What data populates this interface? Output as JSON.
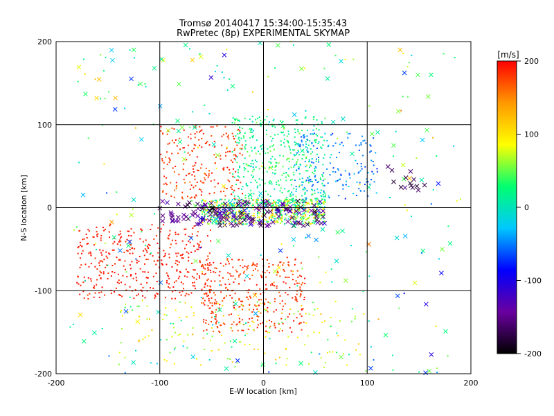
{
  "chart_data": {
    "type": "scatter",
    "title": "Tromsø 20140417 15:34:00-15:35:43",
    "subtitle": "RwPretec (8p) EXPERIMENTAL SKYMAP",
    "xlabel": "E-W location [km]",
    "ylabel": "N-S location [km]",
    "xlim": [
      -200,
      200
    ],
    "ylim": [
      -200,
      200
    ],
    "xticks": [
      -200,
      -100,
      0,
      100,
      200
    ],
    "yticks": [
      -200,
      -100,
      0,
      100,
      200
    ],
    "grid": true,
    "colorbar": {
      "label": "[m/s]",
      "range": [
        -200,
        200
      ],
      "ticks": [
        200,
        100,
        0,
        -100,
        -200
      ],
      "colormap": [
        "#000000",
        "#6a00a0",
        "#0000ff",
        "#00c8ff",
        "#00ff70",
        "#ffff00",
        "#ff9900",
        "#ff0000"
      ]
    },
    "point_groups": [
      {
        "marker": "dot",
        "xrange": [
          -60,
          60
        ],
        "yrange": [
          -20,
          10
        ],
        "velocity_mean": 60,
        "velocity_spread": 180,
        "count": 700
      },
      {
        "marker": "cross",
        "xrange": [
          -100,
          60
        ],
        "yrange": [
          -22,
          8
        ],
        "velocity_mean": -150,
        "velocity_spread": 90,
        "count": 160
      },
      {
        "marker": "dot",
        "xrange": [
          -30,
          60
        ],
        "yrange": [
          0,
          110
        ],
        "velocity_mean": 20,
        "velocity_spread": 70,
        "count": 450
      },
      {
        "marker": "dot",
        "xrange": [
          -100,
          -20
        ],
        "yrange": [
          10,
          100
        ],
        "velocity_mean": 180,
        "velocity_spread": 40,
        "count": 220
      },
      {
        "marker": "dot",
        "xrange": [
          -180,
          -50
        ],
        "yrange": [
          -110,
          -20
        ],
        "velocity_mean": 190,
        "velocity_spread": 25,
        "count": 400
      },
      {
        "marker": "dot",
        "xrange": [
          -60,
          40
        ],
        "yrange": [
          -150,
          -60
        ],
        "velocity_mean": 180,
        "velocity_spread": 45,
        "count": 350
      },
      {
        "marker": "dot",
        "xrange": [
          30,
          110
        ],
        "yrange": [
          10,
          90
        ],
        "velocity_mean": -50,
        "velocity_spread": 60,
        "count": 160
      },
      {
        "marker": "dot",
        "xrange": [
          -140,
          100
        ],
        "yrange": [
          -190,
          -110
        ],
        "velocity_mean": 80,
        "velocity_spread": 110,
        "count": 160
      },
      {
        "marker": "cross",
        "xrange": [
          -180,
          180
        ],
        "yrange": [
          -200,
          200
        ],
        "velocity_mean": 20,
        "velocity_spread": 200,
        "count": 130
      },
      {
        "marker": "dot",
        "xrange": [
          -190,
          190
        ],
        "yrange": [
          -200,
          200
        ],
        "velocity_mean": 30,
        "velocity_spread": 200,
        "count": 200
      },
      {
        "marker": "cross",
        "xrange": [
          120,
          160
        ],
        "yrange": [
          20,
          50
        ],
        "velocity_mean": -170,
        "velocity_spread": 30,
        "count": 14
      }
    ]
  }
}
